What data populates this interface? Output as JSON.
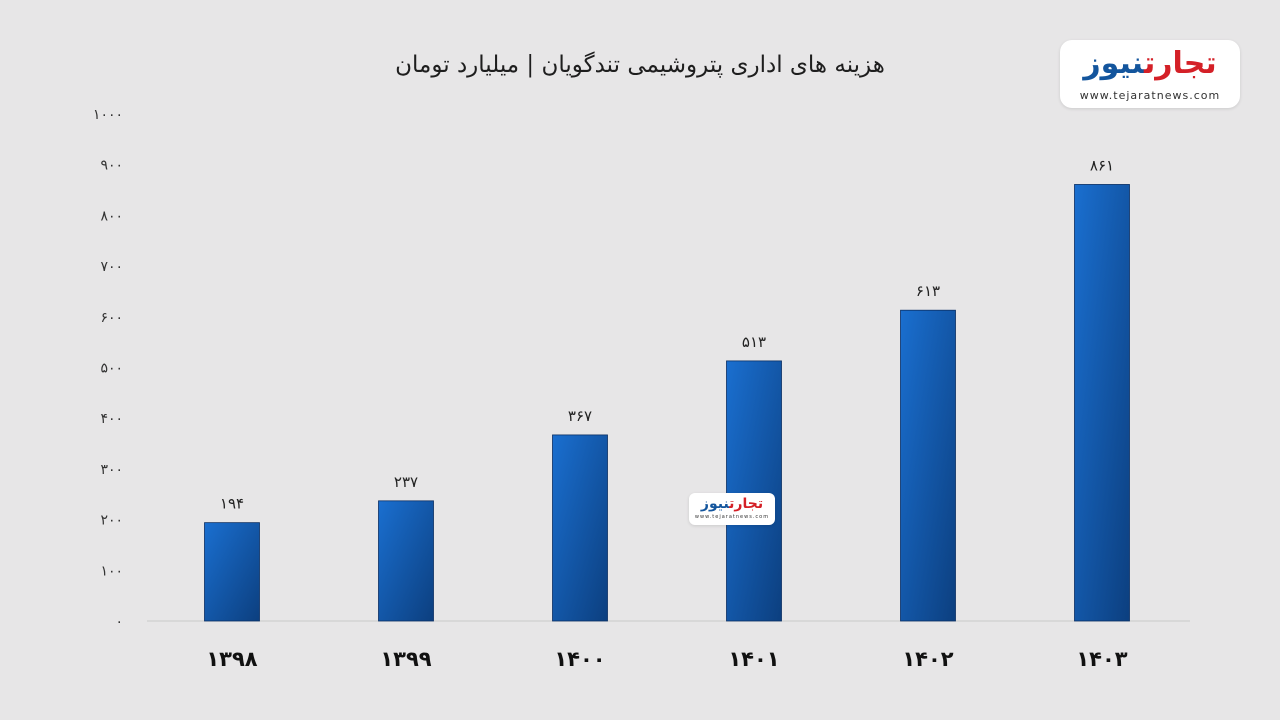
{
  "chart_data": {
    "type": "bar",
    "title": "هزینه های اداری پتروشیمی تندگویان | میلیارد تومان",
    "categories": [
      "۱۳۹۸",
      "۱۳۹۹",
      "۱۴۰۰",
      "۱۴۰۱",
      "۱۴۰۲",
      "۱۴۰۳"
    ],
    "values": [
      194,
      237,
      367,
      513,
      613,
      861
    ],
    "value_labels": [
      "۱۹۴",
      "۲۳۷",
      "۳۶۷",
      "۵۱۳",
      "۶۱۳",
      "۸۶۱"
    ],
    "ylim": [
      0,
      1000
    ],
    "yticks": [
      0,
      100,
      200,
      300,
      400,
      500,
      600,
      700,
      800,
      900,
      1000
    ],
    "ytick_labels": [
      "۰",
      "۱۰۰",
      "۲۰۰",
      "۳۰۰",
      "۴۰۰",
      "۵۰۰",
      "۶۰۰",
      "۷۰۰",
      "۸۰۰",
      "۹۰۰",
      "۱۰۰۰"
    ],
    "grid": false,
    "legend": "none",
    "bar_color_light": "#1a6fd0",
    "bar_color_dark": "#0c3f7f",
    "axis_color": "#c9c9c9"
  },
  "logo": {
    "word1": "تجارت",
    "word2": "نیوز",
    "url": "www.tejaratnews.com",
    "color_red": "#d42027",
    "color_blue": "#13559d"
  }
}
